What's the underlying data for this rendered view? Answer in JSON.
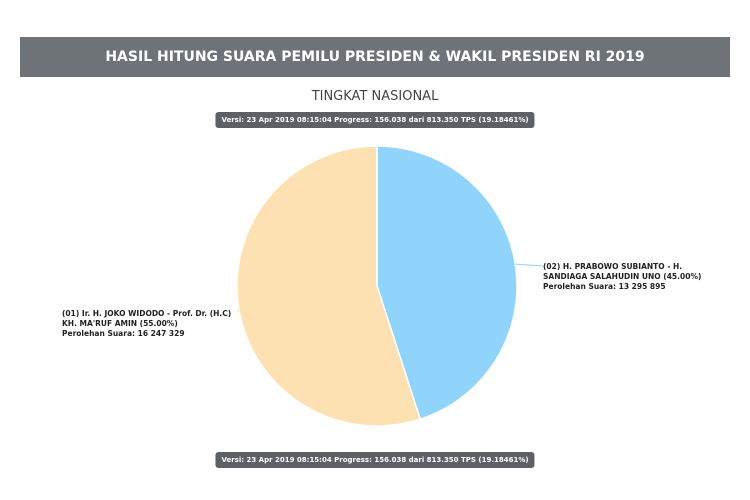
{
  "chart_data": {
    "type": "pie",
    "title": "HASIL HITUNG SUARA PEMILU PRESIDEN & WAKIL PRESIDEN RI 2019",
    "subtitle": "TINGKAT NASIONAL",
    "version_note": "Versi: 23 Apr 2019 08:15:04 Progress: 156.038 dari 813.350 TPS (19.18461%)",
    "categories": [
      "(02) H. PRABOWO SUBIANTO - H. SANDIAGA SALAHUDIN UNO (45.00%)",
      "(01) Ir. H. JOKO WIDODO - Prof. Dr. (H.C) KH. MA'RUF AMIN (55.00%)"
    ],
    "values": [
      45,
      55
    ],
    "vote_labels": [
      "Perolehan Suara: 13 295 895",
      "Perolehan Suara: 16 247 329"
    ],
    "colors": [
      "#90d3fb",
      "#fde1b2"
    ]
  }
}
